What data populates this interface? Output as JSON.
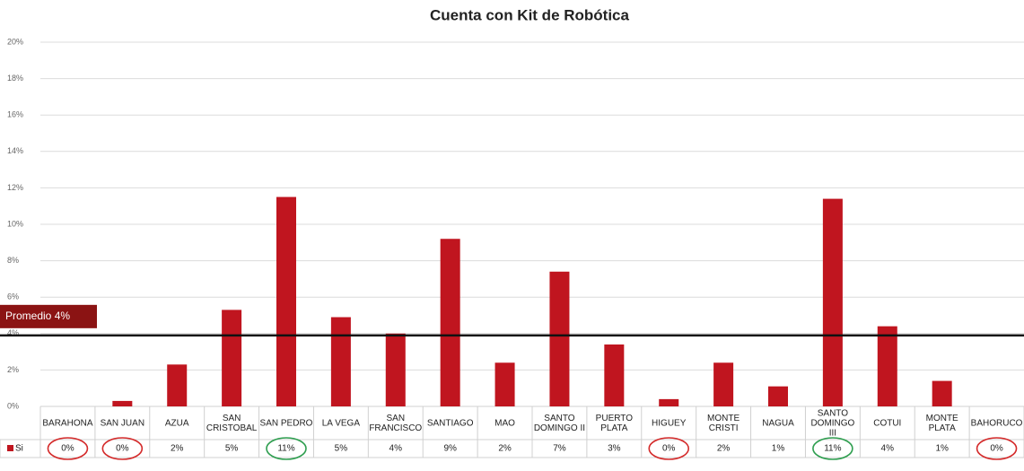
{
  "chart_data": {
    "type": "bar",
    "title": "Cuenta con Kit de Robótica",
    "categories": [
      "BARAHONA",
      "SAN JUAN",
      "AZUA",
      "SAN CRISTOBAL",
      "SAN PEDRO",
      "LA VEGA",
      "SAN FRANCISCO",
      "SANTIAGO",
      "MAO",
      "SANTO DOMINGO II",
      "PUERTO PLATA",
      "HIGUEY",
      "MONTE CRISTI",
      "NAGUA",
      "SANTO DOMINGO III",
      "COTUI",
      "MONTE PLATA",
      "BAHORUCO"
    ],
    "series": [
      {
        "name": "Si",
        "color": "#c0151f",
        "values": [
          0,
          0.3,
          2.3,
          5.3,
          11.5,
          4.9,
          4.0,
          9.2,
          2.4,
          7.4,
          3.4,
          0.4,
          2.4,
          1.1,
          11.4,
          4.4,
          1.4,
          0
        ],
        "value_labels": [
          "0%",
          "0%",
          "2%",
          "5%",
          "11%",
          "5%",
          "4%",
          "9%",
          "2%",
          "7%",
          "3%",
          "0%",
          "2%",
          "1%",
          "11%",
          "4%",
          "1%",
          "0%"
        ]
      }
    ],
    "ylim": [
      0,
      20
    ],
    "yticks": [
      {
        "value": 0,
        "label": "0%"
      },
      {
        "value": 2,
        "label": "2%"
      },
      {
        "value": 4,
        "label": "4%"
      },
      {
        "value": 6,
        "label": "6%"
      },
      {
        "value": 8,
        "label": "8%"
      },
      {
        "value": 10,
        "label": "10%"
      },
      {
        "value": 12,
        "label": "12%"
      },
      {
        "value": 14,
        "label": "14%"
      },
      {
        "value": 16,
        "label": "16%"
      },
      {
        "value": 18,
        "label": "18%"
      },
      {
        "value": 20,
        "label": "20%"
      }
    ],
    "grid": true,
    "average": {
      "label": "Promedio 4%",
      "value": 3.9,
      "color": "#8b1313"
    },
    "circles": [
      {
        "color": "#d42a2a",
        "indices": [
          0,
          1,
          11,
          17
        ]
      },
      {
        "color": "#2e9e4f",
        "indices": [
          4,
          14
        ]
      }
    ]
  }
}
